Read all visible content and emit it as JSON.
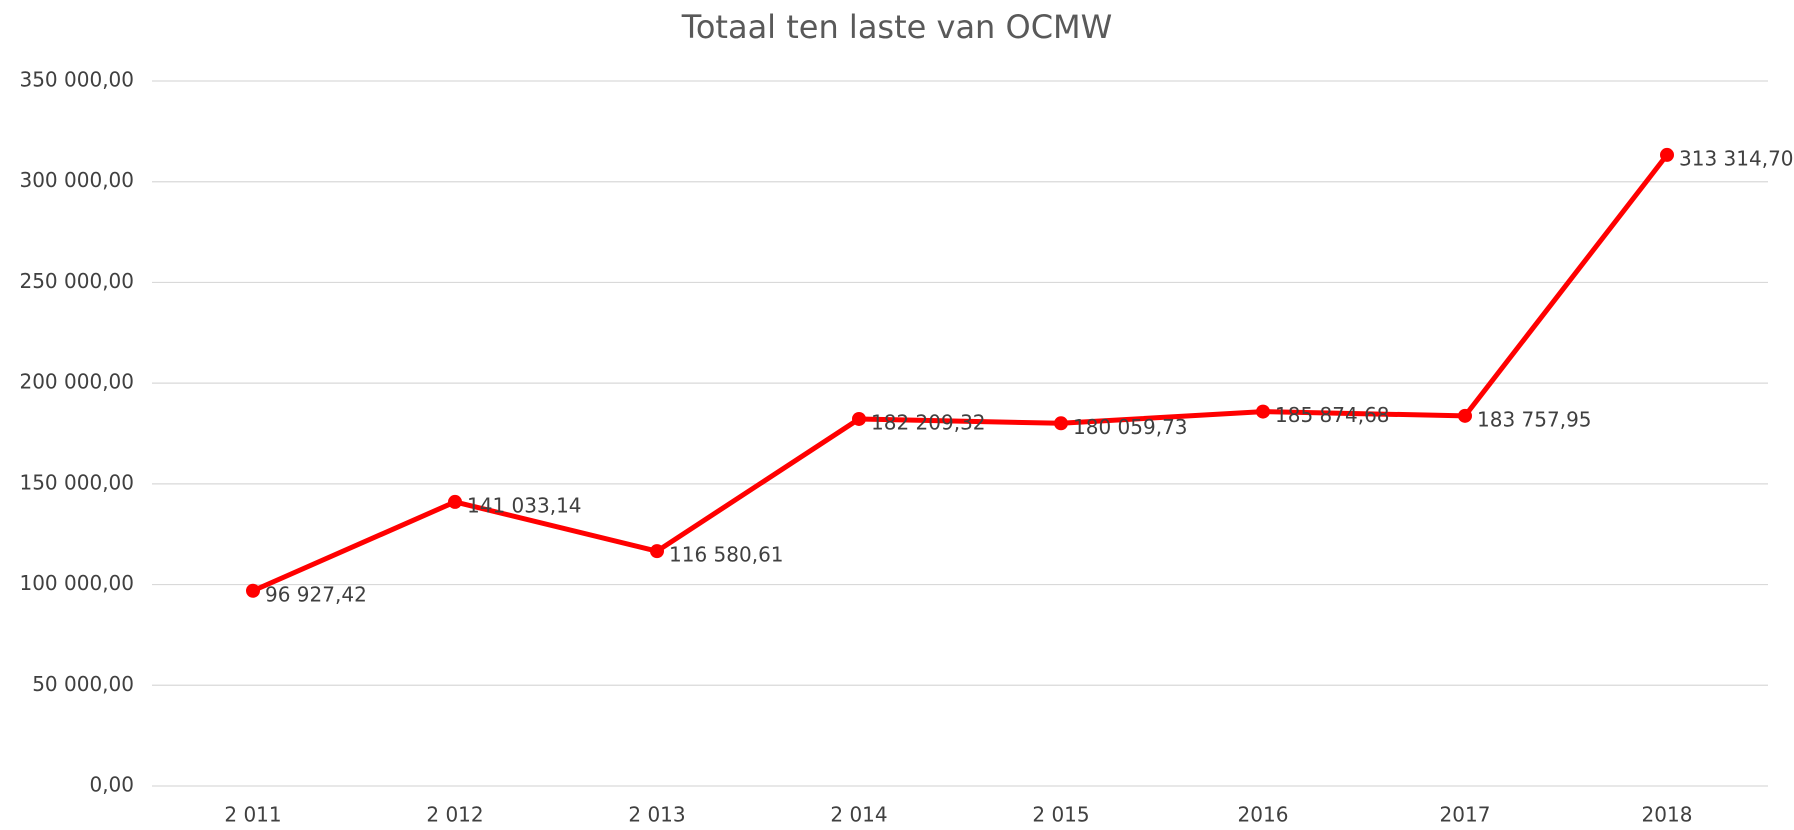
{
  "chart_data": {
    "type": "line",
    "title": "Totaal ten laste van OCMW",
    "categories": [
      "2 011",
      "2 012",
      "2 013",
      "2 014",
      "2 015",
      "2016",
      "2017",
      "2018"
    ],
    "series": [
      {
        "name": "Totaal ten laste van OCMW",
        "color": "#ff0000",
        "values": [
          96927.42,
          141033.14,
          116580.61,
          182209.32,
          180059.73,
          185874.68,
          183757.95,
          313314.7
        ],
        "value_labels": [
          "96 927,42",
          "141 033,14",
          "116 580,61",
          "182 209,32",
          "180 059,73",
          "185 874,68",
          "183 757,95",
          "313 314,70"
        ]
      }
    ],
    "ylim": [
      0,
      350000
    ],
    "yticks": [
      {
        "value": 0,
        "label": "0,00"
      },
      {
        "value": 50000,
        "label": "50 000,00"
      },
      {
        "value": 100000,
        "label": "100 000,00"
      },
      {
        "value": 150000,
        "label": "150 000,00"
      },
      {
        "value": 200000,
        "label": "200 000,00"
      },
      {
        "value": 250000,
        "label": "250 000,00"
      },
      {
        "value": 300000,
        "label": "300 000,00"
      },
      {
        "value": 350000,
        "label": "350 000,00"
      }
    ],
    "grid": true
  }
}
